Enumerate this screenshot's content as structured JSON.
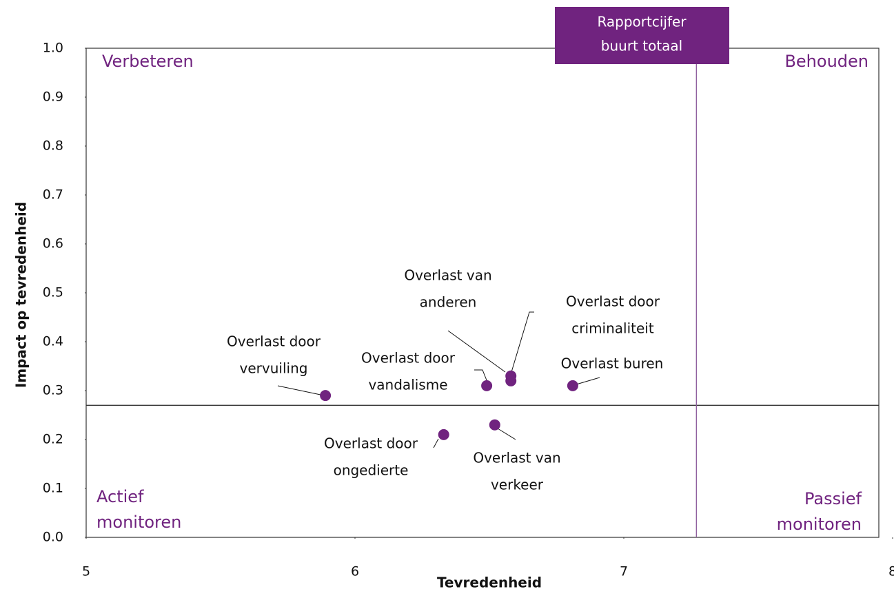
{
  "chart_data": {
    "type": "scatter",
    "x_label": "Tevredenheid",
    "y_label": "Impact op tevredenheid",
    "xlim": [
      5,
      8
    ],
    "xticks": [
      5,
      6,
      7,
      8
    ],
    "ylim": [
      0,
      1
    ],
    "yticks": [
      {
        "value": 0,
        "label": "0.0"
      },
      0.1,
      0.2,
      0.3,
      0.4,
      0.5,
      0.6,
      0.7,
      0.8,
      0.9,
      {
        "value": 1,
        "label": "1.0"
      }
    ],
    "color": "#70237f",
    "labels": [
      [
        "Overlast door",
        "vervuiling"
      ],
      [
        "Overlast door",
        "vandalisme"
      ],
      [
        "Overlast van",
        "anderen"
      ],
      [
        "Overlast door",
        "criminaliteit"
      ],
      [
        "Overlast buren"
      ],
      [
        "Overlast door",
        "ongedierte"
      ],
      [
        "Overlast van",
        "verkeer"
      ]
    ],
    "x": [
      5.89,
      6.49,
      6.58,
      6.58,
      6.81,
      6.33,
      6.52
    ],
    "values": [
      0.29,
      0.31,
      0.32,
      0.33,
      0.31,
      0.21,
      0.23
    ],
    "reference_x": 7.27,
    "reference_y": 0.27,
    "reference_label": [
      "Rapportcijfer",
      "buurt totaal"
    ],
    "quadrants": {
      "top_left": [
        "Verbeteren"
      ],
      "top_right": [
        "Behouden"
      ],
      "bottom_left": [
        "Actief",
        "monitoren"
      ],
      "bottom_right": [
        "Passief",
        "monitoren"
      ]
    }
  }
}
